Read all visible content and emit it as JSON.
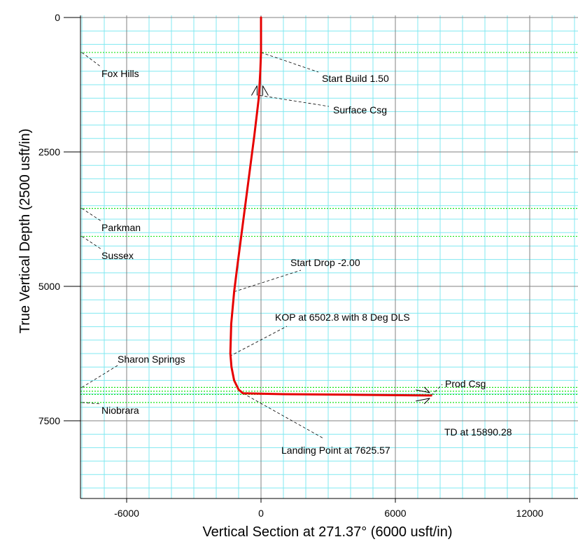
{
  "chart_data": {
    "type": "line",
    "title": "",
    "xlabel": "Vertical Section at 271.37° (6000 usft/in)",
    "ylabel": "True Vertical Depth (2500 usft/in)",
    "xlim": [
      -8000,
      14000
    ],
    "ylim": [
      8750,
      0
    ],
    "x_ticks": [
      -6000,
      0,
      6000,
      12000
    ],
    "y_ticks": [
      0,
      2500,
      5000,
      7500
    ],
    "x_tick_labels": [
      "-6000",
      "0",
      "6000",
      "12000"
    ],
    "y_tick_labels": [
      "0",
      "2500",
      "5000",
      "7500"
    ],
    "grid": true,
    "colors": {
      "well_path": "#e60000",
      "major_grid": "#808080",
      "minor_grid": "#80e8f0",
      "formation_line": "#19e619",
      "leader_line": "#000000"
    },
    "series": [
      {
        "values": [
          {
            "x": 0,
            "y": 0
          },
          {
            "x": 0,
            "y": 650
          },
          {
            "x": -30,
            "y": 1000
          },
          {
            "x": -100,
            "y": 1500
          },
          {
            "x": -300,
            "y": 2200
          },
          {
            "x": -550,
            "y": 3000
          },
          {
            "x": -800,
            "y": 3800
          },
          {
            "x": -1050,
            "y": 4600
          },
          {
            "x": -1200,
            "y": 5100
          },
          {
            "x": -1330,
            "y": 5700
          },
          {
            "x": -1370,
            "y": 6250
          },
          {
            "x": -1320,
            "y": 6500
          },
          {
            "x": -1200,
            "y": 6750
          },
          {
            "x": -1000,
            "y": 6920
          },
          {
            "x": -800,
            "y": 6990
          },
          {
            "x": 1000,
            "y": 7005
          },
          {
            "x": 4000,
            "y": 7015
          },
          {
            "x": 7600,
            "y": 7030
          }
        ]
      }
    ],
    "formations": [
      {
        "name": "Fox Hills",
        "tvd": 650
      },
      {
        "name": "Parkman",
        "tvd": 3550
      },
      {
        "name": "Sussex",
        "tvd": 4070
      },
      {
        "name": "Sharon Springs",
        "tvd": 6880
      },
      {
        "name": "Niobrara",
        "tvd": 7160
      }
    ],
    "extra_formation_lines": [
      6950,
      7010
    ],
    "annotations": [
      {
        "text": "Start Build 1.50",
        "x": 0,
        "y": 650
      },
      {
        "text": "Surface Csg",
        "x": -50,
        "y": 1450
      },
      {
        "text": "Start Drop -2.00",
        "x": -1200,
        "y": 5100
      },
      {
        "text": "KOP at 6502.8 with 8 Deg DLS",
        "x": -1400,
        "y": 6300
      },
      {
        "text": "Landing Point at 7625.57",
        "x": -800,
        "y": 6990
      },
      {
        "text": "Prod Csg",
        "x": 7600,
        "y": 7030
      },
      {
        "text": "TD at 15890.28",
        "x": 7600,
        "y": 7030
      }
    ]
  }
}
